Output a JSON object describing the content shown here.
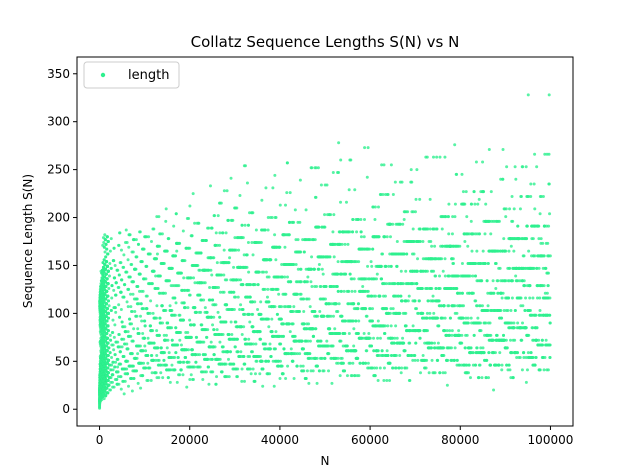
{
  "chart_data": {
    "type": "scatter",
    "title": "Collatz Sequence Lengths S(N) vs N",
    "xlabel": "N",
    "ylabel": "Sequence Length S(N)",
    "xlim": [
      -5000,
      105000
    ],
    "ylim": [
      -17.5,
      367.5
    ],
    "x_ticks": [
      0,
      20000,
      40000,
      60000,
      80000,
      100000
    ],
    "x_tick_labels": [
      "0",
      "20000",
      "40000",
      "60000",
      "80000",
      "100000"
    ],
    "y_ticks": [
      0,
      50,
      100,
      150,
      200,
      250,
      300,
      350
    ],
    "y_tick_labels": [
      "0",
      "50",
      "100",
      "150",
      "200",
      "250",
      "300",
      "350"
    ],
    "grid": false,
    "legend": {
      "position": "top-left",
      "entries": [
        "length"
      ]
    },
    "series": [
      {
        "name": "length",
        "color": "#2ef08e",
        "marker": "circle",
        "n_min": 1,
        "n_max": 100000,
        "approx_max_value": 350
      }
    ]
  }
}
